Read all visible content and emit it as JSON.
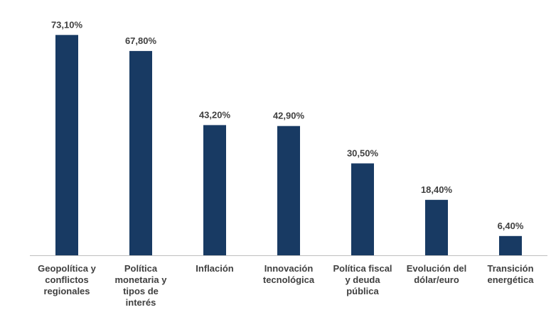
{
  "chart_data": {
    "type": "bar",
    "categories": [
      [
        "Geopolítica y",
        "conflictos",
        "regionales"
      ],
      [
        "Política",
        "monetaria y",
        "tipos de",
        "interés"
      ],
      [
        "Inflación"
      ],
      [
        "Innovación",
        "tecnológica"
      ],
      [
        "Política fiscal",
        "y deuda",
        "pública"
      ],
      [
        "Evolución del",
        "dólar/euro"
      ],
      [
        "Transición",
        "energética"
      ]
    ],
    "values": [
      73.1,
      67.8,
      43.2,
      42.9,
      30.5,
      18.4,
      6.4
    ],
    "value_labels": [
      "73,10%",
      "67,80%",
      "43,20%",
      "42,90%",
      "30,50%",
      "18,40%",
      "6,40%"
    ],
    "ylim": [
      0,
      80
    ],
    "title": "",
    "xlabel": "",
    "ylabel": "",
    "bar_color": "#183a63",
    "label_color": "#404040",
    "axis_color": "#bfbfbf",
    "grid": false,
    "legend": "none"
  }
}
